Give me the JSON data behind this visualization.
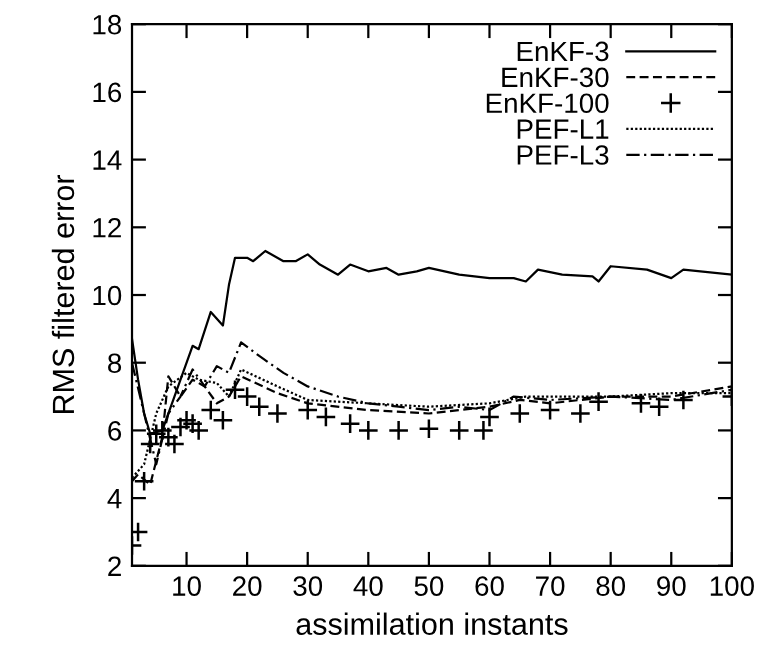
{
  "chart_data": {
    "type": "line",
    "xlabel": "assimilation instants",
    "ylabel": "RMS filtered error",
    "xlim": [
      1,
      100
    ],
    "ylim": [
      2,
      18
    ],
    "xticks": [
      10,
      20,
      30,
      40,
      50,
      60,
      70,
      80,
      90,
      100
    ],
    "yticks": [
      2,
      4,
      6,
      8,
      10,
      12,
      14,
      16,
      18
    ],
    "grid": false,
    "legend": "top right",
    "series": [
      {
        "name": "EnKF-3",
        "color": "#000000",
        "line_style": "solid",
        "marker": "none",
        "x": [
          1,
          2,
          3,
          4,
          6,
          8,
          11,
          12,
          14,
          16,
          17,
          18,
          20,
          21,
          23,
          26,
          28,
          30,
          32,
          35,
          37,
          40,
          43,
          45,
          48,
          50,
          55,
          60,
          64,
          66,
          68,
          72,
          77,
          78,
          80,
          86,
          90,
          92,
          100
        ],
        "values": [
          8.7,
          7.5,
          6.5,
          5.9,
          6.0,
          7.0,
          8.5,
          8.4,
          9.5,
          9.1,
          10.3,
          11.1,
          11.1,
          11.0,
          11.3,
          11.0,
          11.0,
          11.2,
          10.9,
          10.6,
          10.9,
          10.7,
          10.8,
          10.6,
          10.7,
          10.8,
          10.6,
          10.5,
          10.5,
          10.4,
          10.75,
          10.6,
          10.55,
          10.4,
          10.85,
          10.75,
          10.5,
          10.75,
          10.6
        ]
      },
      {
        "name": "EnKF-30",
        "color": "#000000",
        "line_style": "dashed",
        "marker": "none",
        "x": [
          1,
          2,
          4,
          6,
          7,
          9,
          11,
          13,
          15,
          17,
          19,
          25,
          30,
          40,
          50,
          60,
          65,
          70,
          80,
          90,
          100
        ],
        "values": [
          4.5,
          4.7,
          4.4,
          5.8,
          7.6,
          7.0,
          7.5,
          7.3,
          6.8,
          7.0,
          7.6,
          7.1,
          6.8,
          6.6,
          6.5,
          6.7,
          6.9,
          6.8,
          7.0,
          7.0,
          7.3
        ]
      },
      {
        "name": "EnKF-100",
        "type": "scatter",
        "color": "#000000",
        "marker": "cross",
        "x": [
          1,
          2,
          3,
          4,
          5,
          6,
          7,
          8,
          9,
          10,
          11,
          12,
          14,
          16,
          18,
          20,
          22,
          25,
          30,
          33,
          37,
          40,
          45,
          50,
          55,
          59,
          60,
          65,
          70,
          75,
          78,
          85,
          88,
          92,
          100
        ],
        "values": [
          2.6,
          3.0,
          4.5,
          5.6,
          5.9,
          6.0,
          5.8,
          5.6,
          6.1,
          6.3,
          6.2,
          6.0,
          6.6,
          6.3,
          7.2,
          7.0,
          6.7,
          6.5,
          6.6,
          6.4,
          6.2,
          6.0,
          6.0,
          6.05,
          6.0,
          6.0,
          6.4,
          6.5,
          6.6,
          6.5,
          6.85,
          6.8,
          6.7,
          6.9,
          7.0
        ]
      },
      {
        "name": "PEF-L1",
        "color": "#000000",
        "line_style": "dotted",
        "marker": "none",
        "x": [
          1,
          3,
          5,
          7,
          10,
          12,
          15,
          17,
          19,
          25,
          30,
          40,
          50,
          60,
          66,
          80,
          90,
          100
        ],
        "values": [
          4.6,
          5.0,
          6.5,
          7.3,
          7.7,
          7.5,
          7.4,
          7.0,
          7.8,
          7.3,
          6.9,
          6.8,
          6.7,
          6.8,
          7.0,
          7.0,
          7.1,
          7.1
        ]
      },
      {
        "name": "PEF-L3",
        "color": "#000000",
        "line_style": "dashdot",
        "marker": "none",
        "x": [
          1,
          3,
          5,
          7,
          9,
          11,
          13,
          15,
          17,
          19,
          22,
          26,
          30,
          35,
          40,
          45,
          50,
          55,
          60,
          64,
          70,
          80,
          90,
          100
        ],
        "values": [
          8.0,
          6.5,
          5.0,
          6.5,
          7.0,
          7.8,
          7.3,
          7.9,
          7.7,
          8.6,
          8.2,
          7.7,
          7.3,
          7.0,
          6.8,
          6.7,
          6.6,
          6.7,
          6.6,
          7.0,
          6.9,
          7.0,
          6.9,
          7.2
        ]
      }
    ]
  }
}
